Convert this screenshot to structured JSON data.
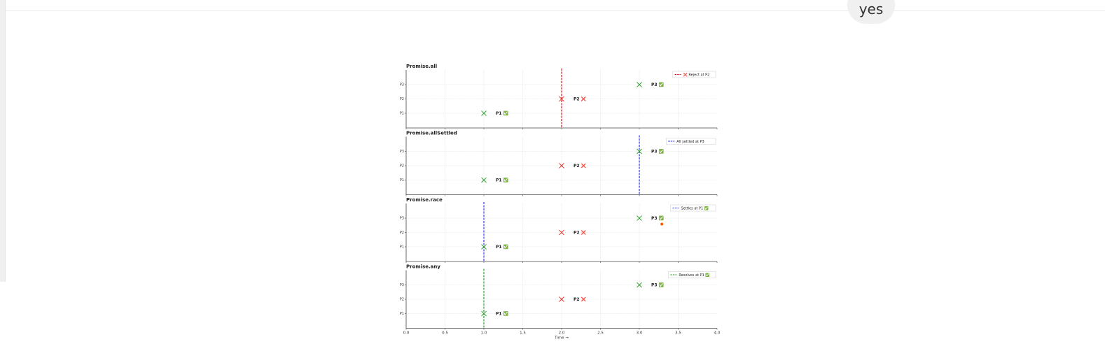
{
  "conversation": {
    "user_message": "yes"
  },
  "chart_data": {
    "type": "scatter",
    "x_label": "Time →",
    "x_ticks": [
      "0.0",
      "0.5",
      "1.0",
      "1.5",
      "2.0",
      "2.5",
      "3.0",
      "3.5",
      "4.0"
    ],
    "xlim": [
      0,
      4
    ],
    "y_categories": [
      "P1",
      "P2",
      "P3"
    ],
    "grid": true,
    "legend_position": "top-right",
    "status_colors": {
      "fulfilled": "#2ca02c",
      "rejected": "#e8322c"
    },
    "panels": [
      {
        "title": "Promise.all",
        "points": [
          {
            "label": "P1 ✅",
            "x": 1.0,
            "y": "P1",
            "status": "fulfilled"
          },
          {
            "label": "P2 ❌",
            "x": 2.0,
            "y": "P2",
            "status": "rejected"
          },
          {
            "label": "P3 ✅",
            "x": 3.0,
            "y": "P3",
            "status": "fulfilled"
          }
        ],
        "marker_line": {
          "x": 2.0,
          "color": "#e31a1c",
          "legend": "❌ Reject at P2"
        }
      },
      {
        "title": "Promise.allSettled",
        "points": [
          {
            "label": "P1 ✅",
            "x": 1.0,
            "y": "P1",
            "status": "fulfilled"
          },
          {
            "label": "P2 ❌",
            "x": 2.0,
            "y": "P2",
            "status": "rejected"
          },
          {
            "label": "P3 ✅",
            "x": 3.0,
            "y": "P3",
            "status": "fulfilled"
          }
        ],
        "marker_line": {
          "x": 3.0,
          "color": "#1f2fd8",
          "legend": "All settled at P3"
        }
      },
      {
        "title": "Promise.race",
        "points": [
          {
            "label": "P1 ✅",
            "x": 1.0,
            "y": "P1",
            "status": "fulfilled"
          },
          {
            "label": "P2 ❌",
            "x": 2.0,
            "y": "P2",
            "status": "rejected"
          },
          {
            "label": "P3 ✅",
            "x": 3.0,
            "y": "P3",
            "status": "fulfilled"
          }
        ],
        "marker_line": {
          "x": 1.0,
          "color": "#3a3ae8",
          "legend": "Settles at P1 ✅"
        }
      },
      {
        "title": "Promise.any",
        "points": [
          {
            "label": "P1 ✅",
            "x": 1.0,
            "y": "P1",
            "status": "fulfilled"
          },
          {
            "label": "P2 ❌",
            "x": 2.0,
            "y": "P2",
            "status": "rejected"
          },
          {
            "label": "P3 ✅",
            "x": 3.0,
            "y": "P3",
            "status": "fulfilled"
          }
        ],
        "marker_line": {
          "x": 1.0,
          "color": "#2ca02c",
          "legend": "Resolves at P1 ✅"
        }
      }
    ]
  }
}
